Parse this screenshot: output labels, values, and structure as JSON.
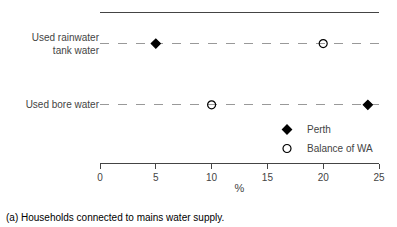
{
  "chart_data": {
    "type": "dot",
    "categories": [
      "Used rainwater\ntank water",
      "Used bore water"
    ],
    "series": [
      {
        "name": "Perth",
        "color": "#000000",
        "marker": "diamond",
        "values": [
          5,
          24
        ]
      },
      {
        "name": "Balance of WA",
        "color": "#000000",
        "marker": "circle-open",
        "values": [
          20,
          10
        ]
      }
    ],
    "xlabel": "%",
    "xlim": [
      0,
      25
    ],
    "xticks": [
      0,
      5,
      10,
      15,
      20,
      25
    ],
    "grid": true,
    "legend": "lower right",
    "annotations": [
      "(a) Households connected to mains water supply."
    ]
  }
}
